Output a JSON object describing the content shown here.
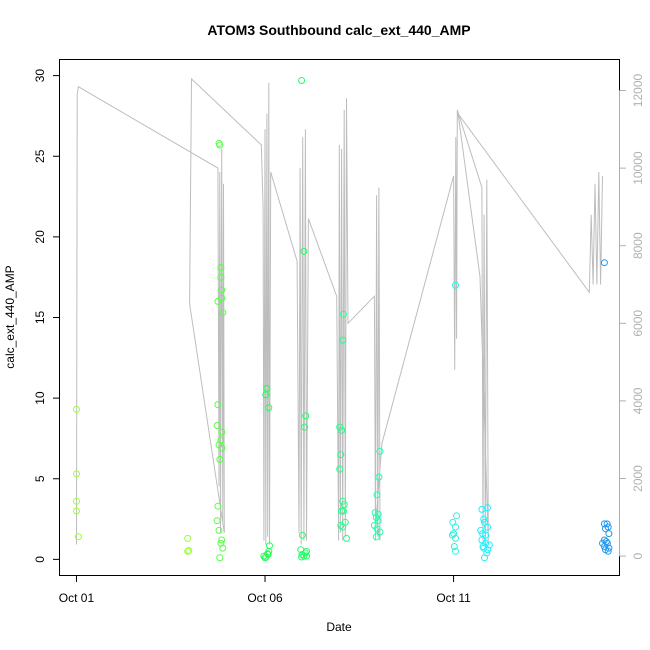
{
  "chart_data": {
    "type": "scatter",
    "title": "ATOM3 Southbound calc_ext_440_AMP",
    "xlabel": "Date",
    "ylabel": "calc_ext_440_AMP",
    "x_tick_labels": [
      "Oct 01",
      "Oct 06",
      "Oct 11"
    ],
    "x_tick_values": [
      0,
      5,
      10
    ],
    "xlim": [
      -0.45,
      14.4
    ],
    "ylim": [
      -1.0,
      31.0
    ],
    "y_ticks": [
      0,
      5,
      10,
      15,
      20,
      25,
      30
    ],
    "y2lim": [
      -500,
      12800
    ],
    "y2_ticks": [
      0,
      2000,
      4000,
      6000,
      8000,
      10000,
      12000
    ],
    "series": [
      {
        "color": "#99ff33",
        "points": [
          [
            0.0,
            9.3
          ],
          [
            0.0,
            5.3
          ],
          [
            0.0,
            3.6
          ],
          [
            0.0,
            3.0
          ],
          [
            0.05,
            1.4
          ],
          [
            2.95,
            1.3
          ],
          [
            2.95,
            0.5
          ],
          [
            2.98,
            0.55
          ]
        ]
      },
      {
        "color": "#55ff44",
        "points": [
          [
            3.78,
            25.8
          ],
          [
            3.8,
            25.7
          ],
          [
            3.83,
            18.1
          ],
          [
            3.83,
            17.5
          ],
          [
            3.85,
            16.7
          ],
          [
            3.75,
            16.0
          ],
          [
            3.85,
            16.2
          ],
          [
            3.88,
            15.3
          ],
          [
            3.75,
            9.6
          ],
          [
            3.73,
            8.3
          ],
          [
            3.85,
            7.9
          ],
          [
            3.83,
            7.4
          ],
          [
            3.78,
            7.1
          ],
          [
            3.85,
            6.9
          ],
          [
            3.8,
            6.2
          ],
          [
            3.75,
            3.3
          ],
          [
            3.73,
            2.4
          ],
          [
            3.78,
            1.8
          ],
          [
            3.85,
            1.2
          ],
          [
            3.83,
            1.0
          ],
          [
            3.88,
            0.7
          ],
          [
            3.8,
            0.1
          ]
        ]
      },
      {
        "color": "#22ff55",
        "points": [
          [
            4.97,
            0.2
          ],
          [
            5.02,
            0.15
          ],
          [
            5.07,
            0.35
          ],
          [
            5.02,
            10.2
          ],
          [
            5.05,
            10.6
          ],
          [
            5.1,
            9.4
          ],
          [
            5.12,
            0.85
          ],
          [
            5.1,
            0.5
          ],
          [
            5.08,
            0.3
          ],
          [
            5.0,
            0.1
          ]
        ]
      },
      {
        "color": "#22ff66",
        "points": [
          [
            5.97,
            29.7
          ],
          [
            6.03,
            19.1
          ],
          [
            6.08,
            8.9
          ],
          [
            6.05,
            8.2
          ],
          [
            5.99,
            1.5
          ],
          [
            5.95,
            0.6
          ],
          [
            5.98,
            0.3
          ],
          [
            6.03,
            0.2
          ],
          [
            6.07,
            0.4
          ],
          [
            6.1,
            0.5
          ],
          [
            5.97,
            0.15
          ],
          [
            6.1,
            0.2
          ]
        ]
      },
      {
        "color": "#22ff88",
        "points": [
          [
            7.08,
            15.2
          ],
          [
            7.06,
            13.6
          ],
          [
            6.98,
            8.2
          ],
          [
            7.03,
            8.0
          ],
          [
            7.01,
            6.5
          ],
          [
            6.98,
            5.6
          ],
          [
            7.06,
            3.6
          ],
          [
            7.1,
            3.4
          ],
          [
            7.03,
            3.0
          ],
          [
            7.08,
            3.0
          ],
          [
            7.01,
            2.1
          ],
          [
            7.06,
            2.0
          ],
          [
            7.13,
            2.3
          ],
          [
            7.16,
            1.3
          ]
        ]
      },
      {
        "color": "#22ffaa",
        "points": [
          [
            8.05,
            6.7
          ],
          [
            8.02,
            5.1
          ],
          [
            7.97,
            4.0
          ],
          [
            7.92,
            2.9
          ],
          [
            7.95,
            2.6
          ],
          [
            8.0,
            2.4
          ],
          [
            7.9,
            2.1
          ],
          [
            7.97,
            1.9
          ],
          [
            8.05,
            1.7
          ],
          [
            7.95,
            1.4
          ],
          [
            8.0,
            2.8
          ]
        ]
      },
      {
        "color": "#33eedd",
        "points": [
          [
            10.05,
            17.0
          ],
          [
            10.08,
            2.7
          ],
          [
            9.98,
            2.3
          ],
          [
            10.05,
            2.0
          ],
          [
            10.0,
            1.6
          ],
          [
            10.05,
            1.3
          ],
          [
            9.97,
            1.5
          ],
          [
            10.02,
            0.8
          ],
          [
            10.05,
            0.5
          ]
        ]
      },
      {
        "color": "#22eeff",
        "points": [
          [
            10.75,
            3.1
          ],
          [
            10.9,
            3.2
          ],
          [
            10.8,
            2.5
          ],
          [
            10.82,
            2.3
          ],
          [
            10.9,
            2.0
          ],
          [
            10.85,
            1.5
          ],
          [
            10.77,
            1.6
          ],
          [
            10.85,
            1.0
          ],
          [
            10.78,
            0.8
          ],
          [
            10.8,
            0.7
          ],
          [
            10.9,
            0.6
          ],
          [
            10.95,
            0.9
          ],
          [
            10.88,
            0.4
          ],
          [
            10.82,
            0.1
          ],
          [
            10.72,
            1.8
          ],
          [
            10.75,
            1.2
          ]
        ]
      },
      {
        "color": "#2299ee",
        "points": [
          [
            14.0,
            18.4
          ],
          [
            14.0,
            2.2
          ],
          [
            14.07,
            2.2
          ],
          [
            14.1,
            2.0
          ],
          [
            14.03,
            1.9
          ],
          [
            14.12,
            1.6
          ],
          [
            14.0,
            1.2
          ],
          [
            14.05,
            1.1
          ],
          [
            14.08,
            1.0
          ],
          [
            14.0,
            0.8
          ],
          [
            14.12,
            0.7
          ],
          [
            14.03,
            0.6
          ],
          [
            14.1,
            0.5
          ],
          [
            13.95,
            1.0
          ]
        ]
      }
    ],
    "secondary_series": {
      "color": "#bdbdbd",
      "type": "line",
      "points": [
        [
          0.0,
          300
        ],
        [
          0.02,
          11900
        ],
        [
          0.05,
          12100
        ],
        [
          3.75,
          10000
        ],
        [
          3.78,
          1800
        ],
        [
          3.8,
          9900
        ],
        [
          3.82,
          600
        ],
        [
          3.85,
          10500
        ],
        [
          3.88,
          900
        ],
        [
          3.9,
          9600
        ],
        [
          3.92,
          600
        ],
        [
          3.0,
          6500
        ],
        [
          3.05,
          12300
        ],
        [
          4.9,
          10600
        ],
        [
          4.95,
          9000
        ],
        [
          4.97,
          400
        ],
        [
          5.0,
          11000
        ],
        [
          5.02,
          300
        ],
        [
          5.05,
          11400
        ],
        [
          5.07,
          500
        ],
        [
          5.1,
          12200
        ],
        [
          5.12,
          300
        ],
        [
          5.15,
          9900
        ],
        [
          5.85,
          7600
        ],
        [
          5.9,
          600
        ],
        [
          5.93,
          10000
        ],
        [
          5.96,
          300
        ],
        [
          6.0,
          10800
        ],
        [
          6.03,
          400
        ],
        [
          6.07,
          11000
        ],
        [
          6.1,
          400
        ],
        [
          6.15,
          8700
        ],
        [
          6.9,
          6700
        ],
        [
          6.95,
          400
        ],
        [
          6.97,
          10600
        ],
        [
          7.0,
          600
        ],
        [
          7.03,
          10500
        ],
        [
          7.06,
          400
        ],
        [
          7.1,
          11500
        ],
        [
          7.13,
          500
        ],
        [
          7.16,
          11800
        ],
        [
          7.2,
          6000
        ],
        [
          7.9,
          6700
        ],
        [
          7.93,
          400
        ],
        [
          7.96,
          9300
        ],
        [
          7.99,
          500
        ],
        [
          8.02,
          9500
        ],
        [
          8.05,
          400
        ],
        [
          7.95,
          1000
        ],
        [
          8.1,
          2900
        ],
        [
          10.0,
          9800
        ],
        [
          10.03,
          4800
        ],
        [
          10.06,
          10800
        ],
        [
          10.08,
          5600
        ],
        [
          10.1,
          11500
        ],
        [
          10.75,
          9500
        ],
        [
          10.78,
          400
        ],
        [
          10.81,
          8800
        ],
        [
          10.84,
          300
        ],
        [
          10.88,
          9700
        ],
        [
          10.92,
          400
        ],
        [
          10.7,
          7200
        ],
        [
          10.12,
          11400
        ],
        [
          13.6,
          6800
        ],
        [
          13.65,
          8800
        ],
        [
          13.7,
          7000
        ],
        [
          13.75,
          9600
        ],
        [
          13.8,
          7000
        ],
        [
          13.85,
          9900
        ],
        [
          13.9,
          7000
        ],
        [
          13.95,
          9800
        ]
      ]
    },
    "grid": false
  }
}
